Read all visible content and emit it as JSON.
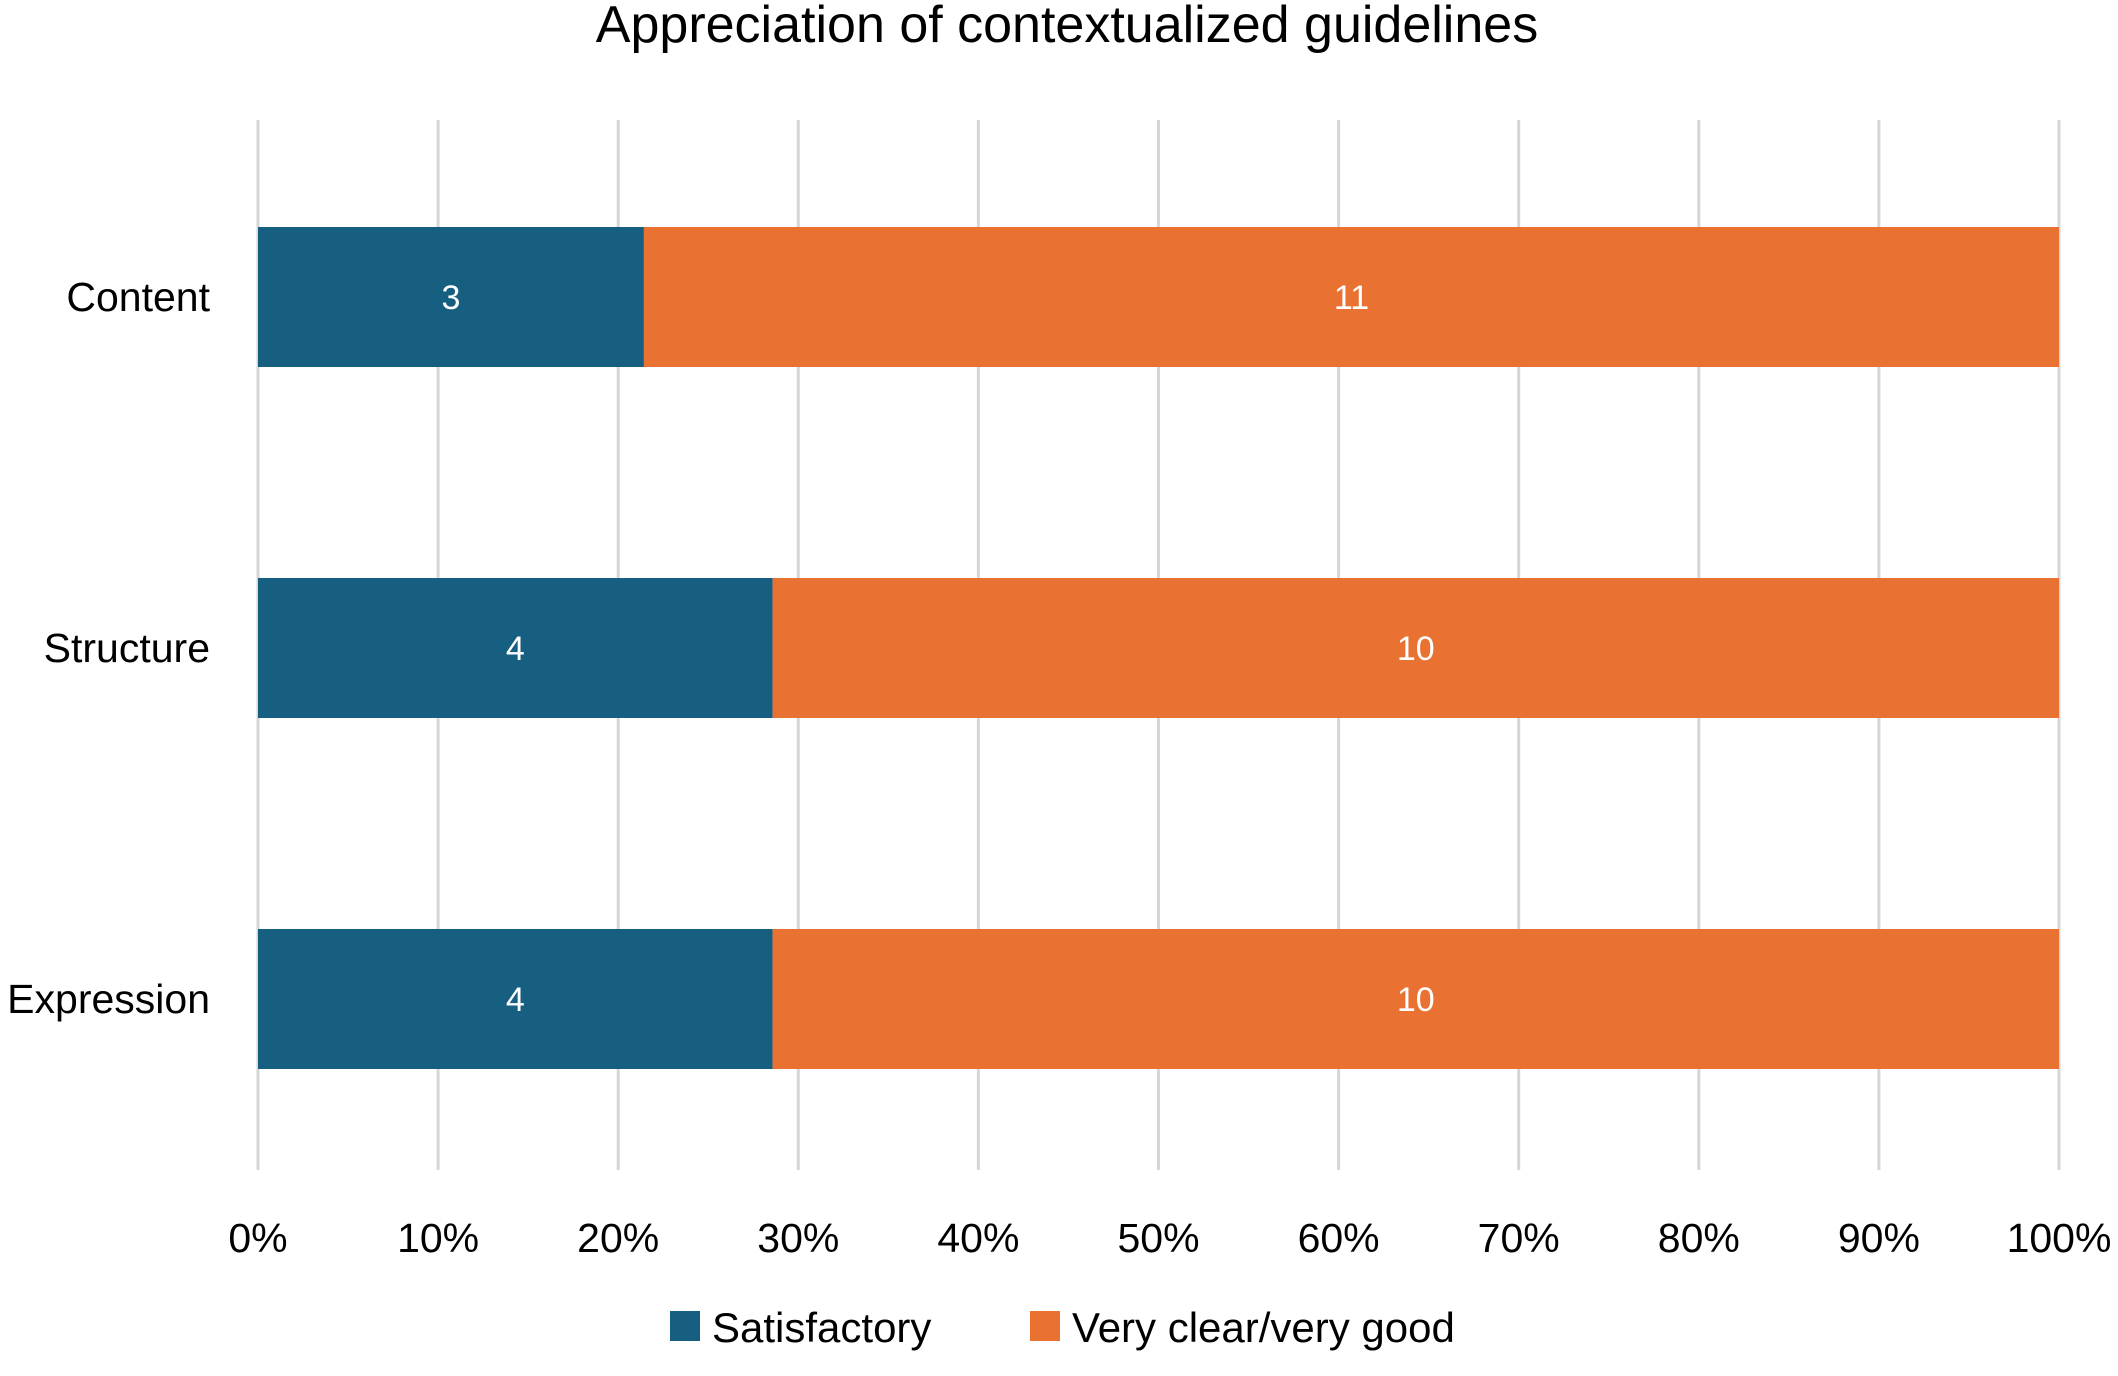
{
  "chart_data": {
    "type": "bar",
    "orientation": "horizontal",
    "stacked": "percent",
    "title": "Appreciation of contextualized guidelines",
    "categories": [
      "Content",
      "Structure",
      "Expression"
    ],
    "series": [
      {
        "name": "Satisfactory",
        "values": [
          3,
          4,
          4
        ],
        "color": "#175f80"
      },
      {
        "name": "Very clear/very good",
        "values": [
          11,
          10,
          10
        ],
        "color": "#e97132"
      }
    ],
    "x_ticks": [
      "0%",
      "10%",
      "20%",
      "30%",
      "40%",
      "50%",
      "60%",
      "70%",
      "80%",
      "90%",
      "100%"
    ],
    "xlim": [
      0,
      100
    ],
    "grid": true,
    "legend": "bottom-center",
    "data_labels": true
  }
}
